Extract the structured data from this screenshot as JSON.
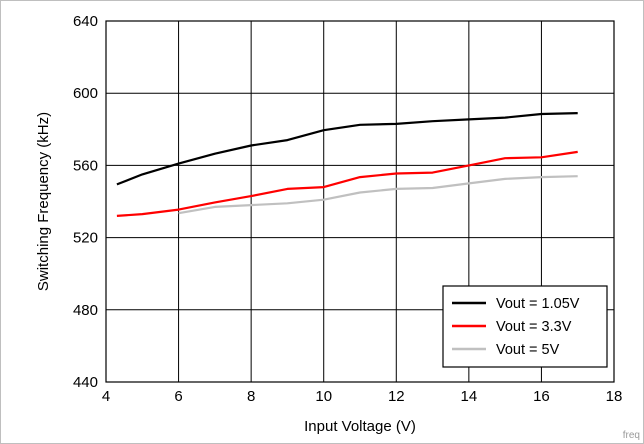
{
  "chart_data": {
    "type": "line",
    "title": "",
    "xlabel": "Input Voltage (V)",
    "ylabel": "Switching Frequency (kHz)",
    "xlim": [
      4,
      18
    ],
    "ylim": [
      440,
      640
    ],
    "xticks": [
      4,
      6,
      8,
      10,
      12,
      14,
      16,
      18
    ],
    "yticks": [
      440,
      480,
      520,
      560,
      600,
      640
    ],
    "grid": true,
    "legend_position": "bottom-right",
    "series": [
      {
        "name": "Vout = 1.05V",
        "color": "#000000",
        "x": [
          4.3,
          5,
          6,
          7,
          8,
          9,
          10,
          11,
          12,
          13,
          14,
          15,
          16,
          17
        ],
        "y": [
          549.5,
          555,
          561,
          566.5,
          571,
          574,
          579.5,
          582.5,
          583,
          584.5,
          585.5,
          586.5,
          588.5,
          589
        ]
      },
      {
        "name": "Vout = 3.3V",
        "color": "#ff0000",
        "x": [
          4.3,
          5,
          6,
          7,
          8,
          9,
          10,
          11,
          12,
          13,
          14,
          15,
          16,
          17
        ],
        "y": [
          532,
          533,
          535.5,
          539.5,
          543,
          547,
          548,
          553.5,
          555.5,
          556,
          560,
          564,
          564.5,
          567.5
        ]
      },
      {
        "name": "Vout = 5V",
        "color": "#c0c0c0",
        "x": [
          6,
          7,
          8,
          9,
          10,
          11,
          12,
          13,
          14,
          15,
          16,
          17
        ],
        "y": [
          533.5,
          537,
          538,
          539,
          541,
          545,
          547,
          547.5,
          550,
          552.5,
          553.5,
          554
        ]
      }
    ],
    "corner_label": "freq"
  }
}
